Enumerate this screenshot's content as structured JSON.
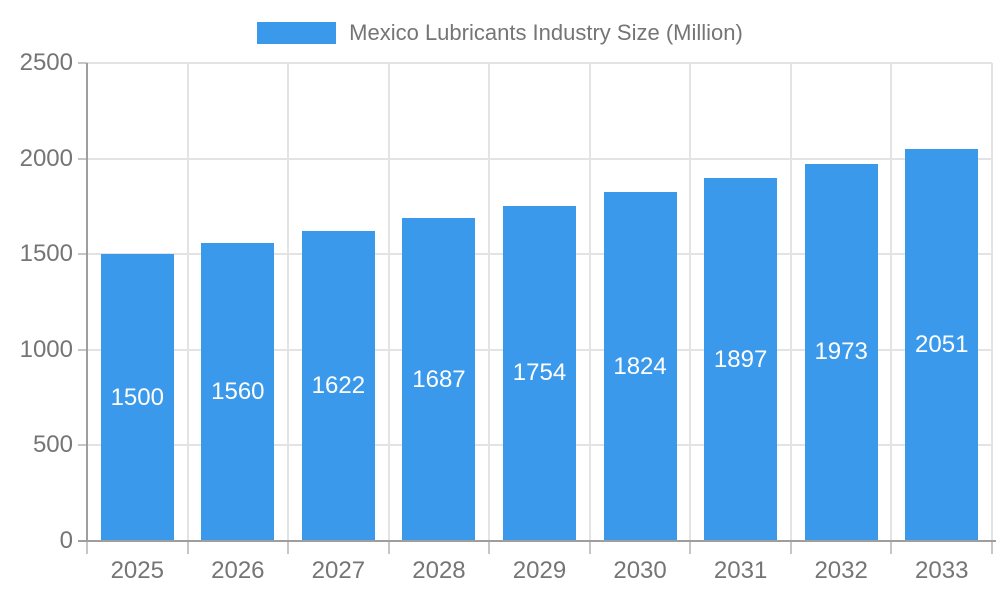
{
  "legend": {
    "label": "Mexico Lubricants Industry Size (Million)"
  },
  "colors": {
    "bar": "#3B99EC",
    "bar_label": "#FFFFFF",
    "axis_line": "#9E9E9E",
    "gridline": "#E3E3E3",
    "tick": "#C6C6C6",
    "text": "#757575",
    "background": "#FFFFFF"
  },
  "chart_data": {
    "type": "bar",
    "title": "Mexico Lubricants Industry Size (Million)",
    "categories": [
      "2025",
      "2026",
      "2027",
      "2028",
      "2029",
      "2030",
      "2031",
      "2032",
      "2033"
    ],
    "series": [
      {
        "name": "Mexico Lubricants Industry Size (Million)",
        "values": [
          1500,
          1560,
          1622,
          1687,
          1754,
          1824,
          1897,
          1973,
          2051
        ]
      }
    ],
    "xlabel": "",
    "ylabel": "",
    "ylim": [
      0,
      2500
    ],
    "yticks": [
      0,
      500,
      1000,
      1500,
      2000,
      2500
    ],
    "grid": true,
    "legend_position": "top",
    "bar_labels_visible": true,
    "bar_label_position": "center-of-bar"
  }
}
